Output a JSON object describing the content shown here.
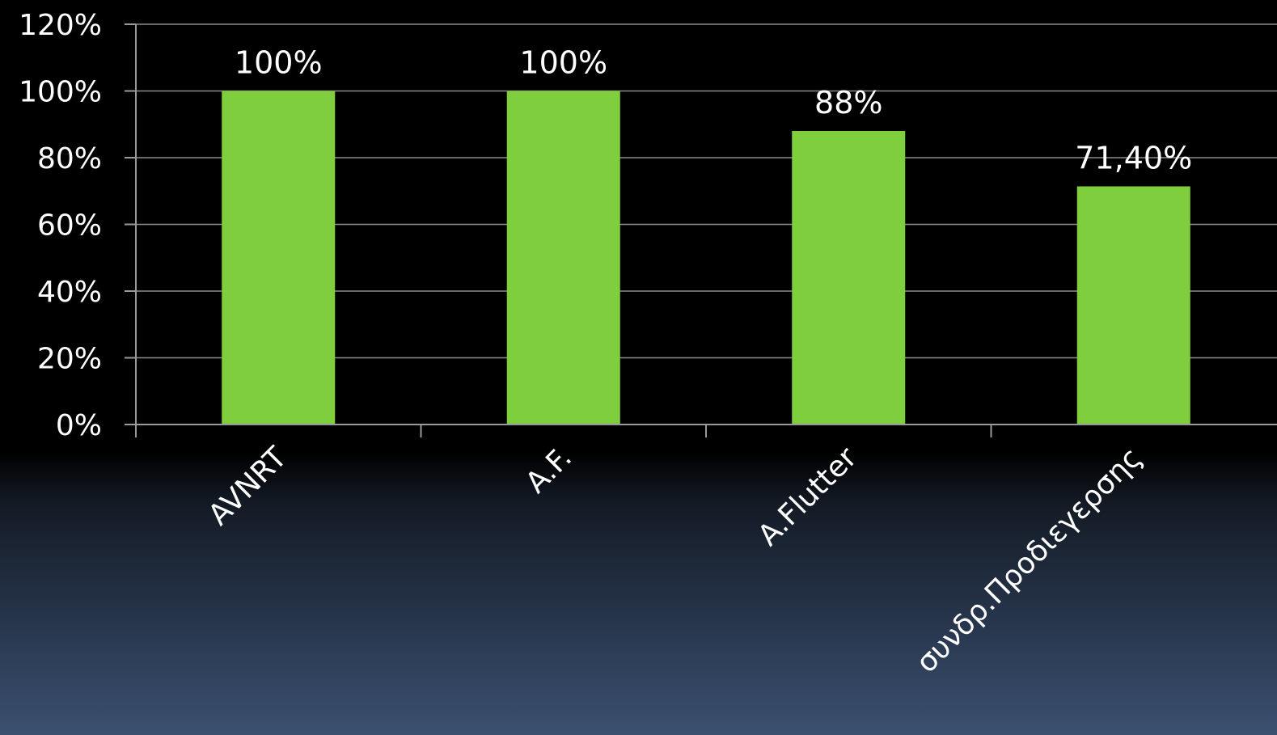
{
  "chart_data": {
    "type": "bar",
    "categories": [
      "AVNRT",
      "A.F.",
      "A.Flutter",
      "συνδρ.Προδιεγερσης"
    ],
    "values": [
      100,
      100,
      88,
      71.4
    ],
    "data_labels": [
      "100%",
      "100%",
      "88%",
      "71,40%"
    ],
    "y_ticks": [
      "0%",
      "20%",
      "40%",
      "60%",
      "80%",
      "100%",
      "120%"
    ],
    "y_tick_values": [
      0,
      20,
      40,
      60,
      80,
      100,
      120
    ],
    "ylim": [
      0,
      120
    ],
    "grid": true,
    "legend": "none",
    "colors": {
      "bar": "#7fce3d",
      "grid": "#8c8c8c",
      "text": "#ffffff",
      "background_top": "#000000",
      "background_bottom": "#3b5070"
    }
  }
}
